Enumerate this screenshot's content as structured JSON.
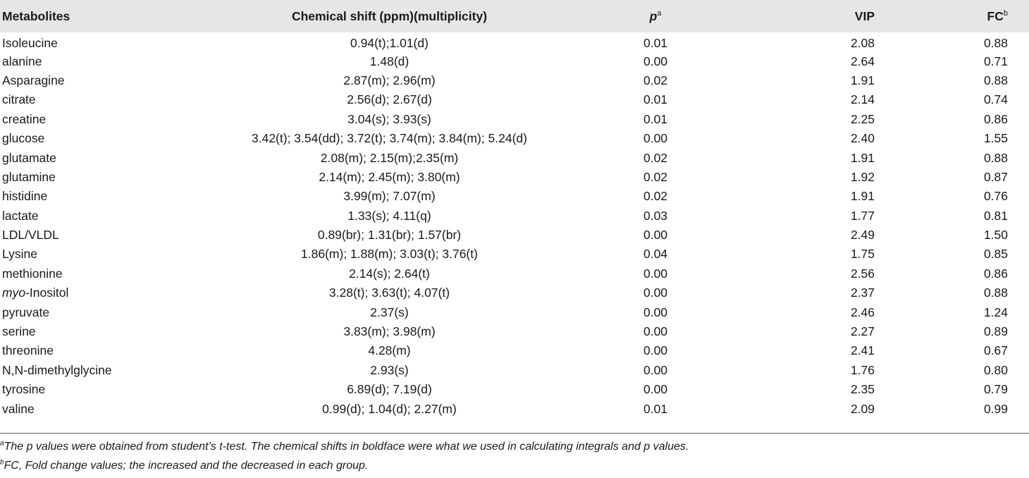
{
  "table": {
    "headers": {
      "metabolites": "Metabolites",
      "chemical_shift": "Chemical shift (ppm)(multiplicity)",
      "p_letter": "p",
      "p_sup": "a",
      "vip": "VIP",
      "fc": "FC",
      "fc_sup": "b"
    },
    "rows": [
      {
        "name": "Isoleucine",
        "shift": "0.94(t);1.01(d)",
        "p": "0.01",
        "vip": "2.08",
        "fc": "0.88"
      },
      {
        "name": "alanine",
        "shift": "1.48(d)",
        "p": "0.00",
        "vip": "2.64",
        "fc": "0.71"
      },
      {
        "name": "Asparagine",
        "shift": "2.87(m); 2.96(m)",
        "p": "0.02",
        "vip": "1.91",
        "fc": "0.88"
      },
      {
        "name": "citrate",
        "shift": "2.56(d); 2.67(d)",
        "p": "0.01",
        "vip": "2.14",
        "fc": "0.74"
      },
      {
        "name": "creatine",
        "shift": "3.04(s); 3.93(s)",
        "p": "0.01",
        "vip": "2.25",
        "fc": "0.86"
      },
      {
        "name": "glucose",
        "shift": "3.42(t); 3.54(dd); 3.72(t); 3.74(m); 3.84(m); 5.24(d)",
        "p": "0.00",
        "vip": "2.40",
        "fc": "1.55"
      },
      {
        "name": "glutamate",
        "shift": "2.08(m); 2.15(m);2.35(m)",
        "p": "0.02",
        "vip": "1.91",
        "fc": "0.88"
      },
      {
        "name": "glutamine",
        "shift": "2.14(m); 2.45(m); 3.80(m)",
        "p": "0.02",
        "vip": "1.92",
        "fc": "0.87"
      },
      {
        "name": "histidine",
        "shift": "3.99(m); 7.07(m)",
        "p": "0.02",
        "vip": "1.91",
        "fc": "0.76"
      },
      {
        "name": "lactate",
        "shift": "1.33(s); 4.11(q)",
        "p": "0.03",
        "vip": "1.77",
        "fc": "0.81"
      },
      {
        "name": "LDL/VLDL",
        "shift": "0.89(br); 1.31(br); 1.57(br)",
        "p": "0.00",
        "vip": "2.49",
        "fc": "1.50"
      },
      {
        "name": "Lysine",
        "shift": "1.86(m); 1.88(m); 3.03(t); 3.76(t)",
        "p": "0.04",
        "vip": "1.75",
        "fc": "0.85"
      },
      {
        "name": "methionine",
        "shift": "2.14(s); 2.64(t)",
        "p": "0.00",
        "vip": "2.56",
        "fc": "0.86"
      },
      {
        "name_italic": "myo",
        "name_rest": "-Inositol",
        "shift": "3.28(t); 3.63(t); 4.07(t)",
        "p": "0.00",
        "vip": "2.37",
        "fc": "0.88"
      },
      {
        "name": "pyruvate",
        "shift": "2.37(s)",
        "p": "0.00",
        "vip": "2.46",
        "fc": "1.24"
      },
      {
        "name": "serine",
        "shift": "3.83(m); 3.98(m)",
        "p": "0.00",
        "vip": "2.27",
        "fc": "0.89"
      },
      {
        "name": "threonine",
        "shift": "4.28(m)",
        "p": "0.00",
        "vip": "2.41",
        "fc": "0.67"
      },
      {
        "name": "N,N-dimethylglycine",
        "shift": "2.93(s)",
        "p": "0.00",
        "vip": "1.76",
        "fc": "0.80"
      },
      {
        "name": "tyrosine",
        "shift": "6.89(d); 7.19(d)",
        "p": "0.00",
        "vip": "2.35",
        "fc": "0.79"
      },
      {
        "name": "valine",
        "shift": "0.99(d); 1.04(d); 2.27(m)",
        "p": "0.01",
        "vip": "2.09",
        "fc": "0.99"
      }
    ]
  },
  "footnotes": [
    {
      "mark": "a",
      "text": "The p values were obtained from student’s t-test. The chemical shifts in boldface were what we used in calculating integrals and p values."
    },
    {
      "mark": "b",
      "text": "FC, Fold change values; the increased and the decreased in each group."
    }
  ]
}
